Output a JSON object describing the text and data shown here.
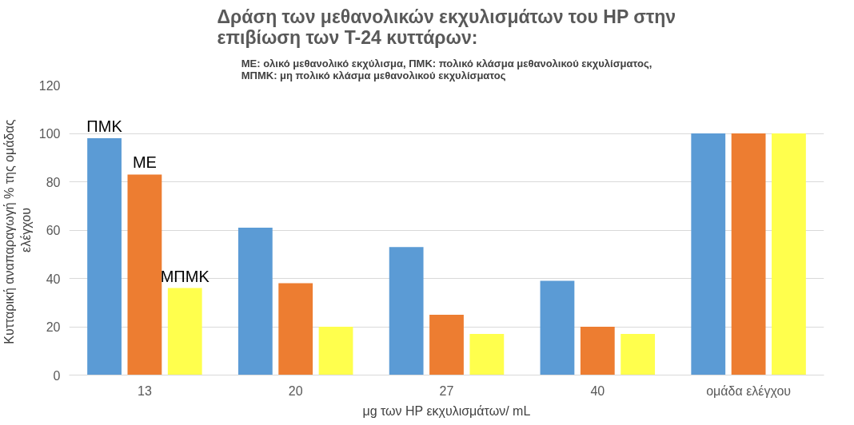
{
  "chart_data": {
    "type": "bar",
    "title": "Δράση των μεθανολικών εκχυλισμάτων του HP στην επιβίωση των Τ-24 κυττάρων:",
    "subtitle": "ΜΕ: ολικό μεθανολικό εκχύλισμα, ΠΜΚ: πολικό κλάσμα μεθανολικού εκχυλίσματος, ΜΠΜΚ: μη πολικό κλάσμα μεθανολικού εκχυλίσματος",
    "xlabel": "μg των HP εκχυλισμάτων/ mL",
    "ylabel": "Κυτταρική αναπαραγωγή  % της ομάδας ελέγχου",
    "categories": [
      "13",
      "20",
      "27",
      "40",
      "ομάδα ελέγχου"
    ],
    "series": [
      {
        "name": "ΠΜΚ",
        "color": "#5b9bd5",
        "values": [
          98,
          61,
          53,
          39,
          100
        ]
      },
      {
        "name": "ΜΕ",
        "color": "#ed7d31",
        "values": [
          83,
          38,
          25,
          20,
          100
        ]
      },
      {
        "name": "ΜΠΜΚ",
        "color": "#ffff4d",
        "values": [
          36,
          20,
          17,
          17,
          100
        ]
      }
    ],
    "ylim": [
      0,
      120
    ],
    "yticks": [
      0,
      20,
      40,
      60,
      80,
      100,
      120
    ],
    "grid": "y"
  }
}
